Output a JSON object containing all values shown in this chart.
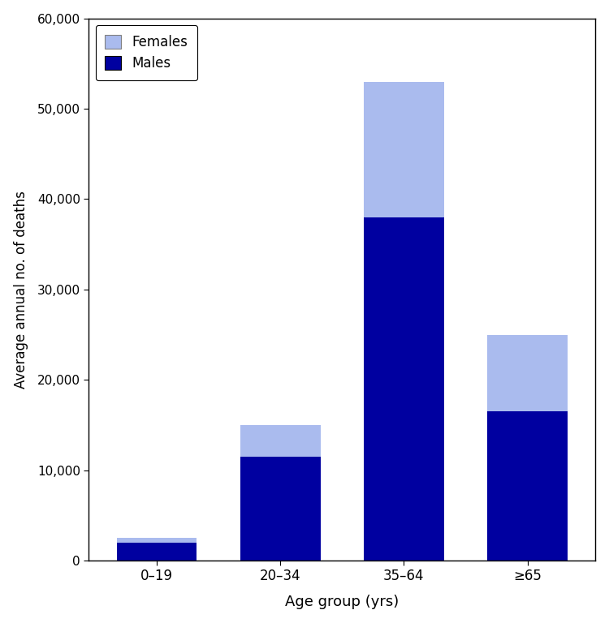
{
  "categories": [
    "0–19",
    "20–34",
    "35–64",
    "≥65"
  ],
  "males": [
    2000,
    11500,
    38000,
    16500
  ],
  "females": [
    500,
    3500,
    15000,
    8500
  ],
  "male_color": "#0000A0",
  "female_color": "#AABBEE",
  "xlabel": "Age group (yrs)",
  "ylabel": "Average annual no. of deaths",
  "ylim": [
    0,
    60000
  ],
  "yticks": [
    0,
    10000,
    20000,
    30000,
    40000,
    50000,
    60000
  ],
  "legend_females": "Females",
  "legend_males": "Males",
  "bar_width": 0.65,
  "figure_width": 7.5,
  "figure_height": 7.68,
  "dpi": 100
}
